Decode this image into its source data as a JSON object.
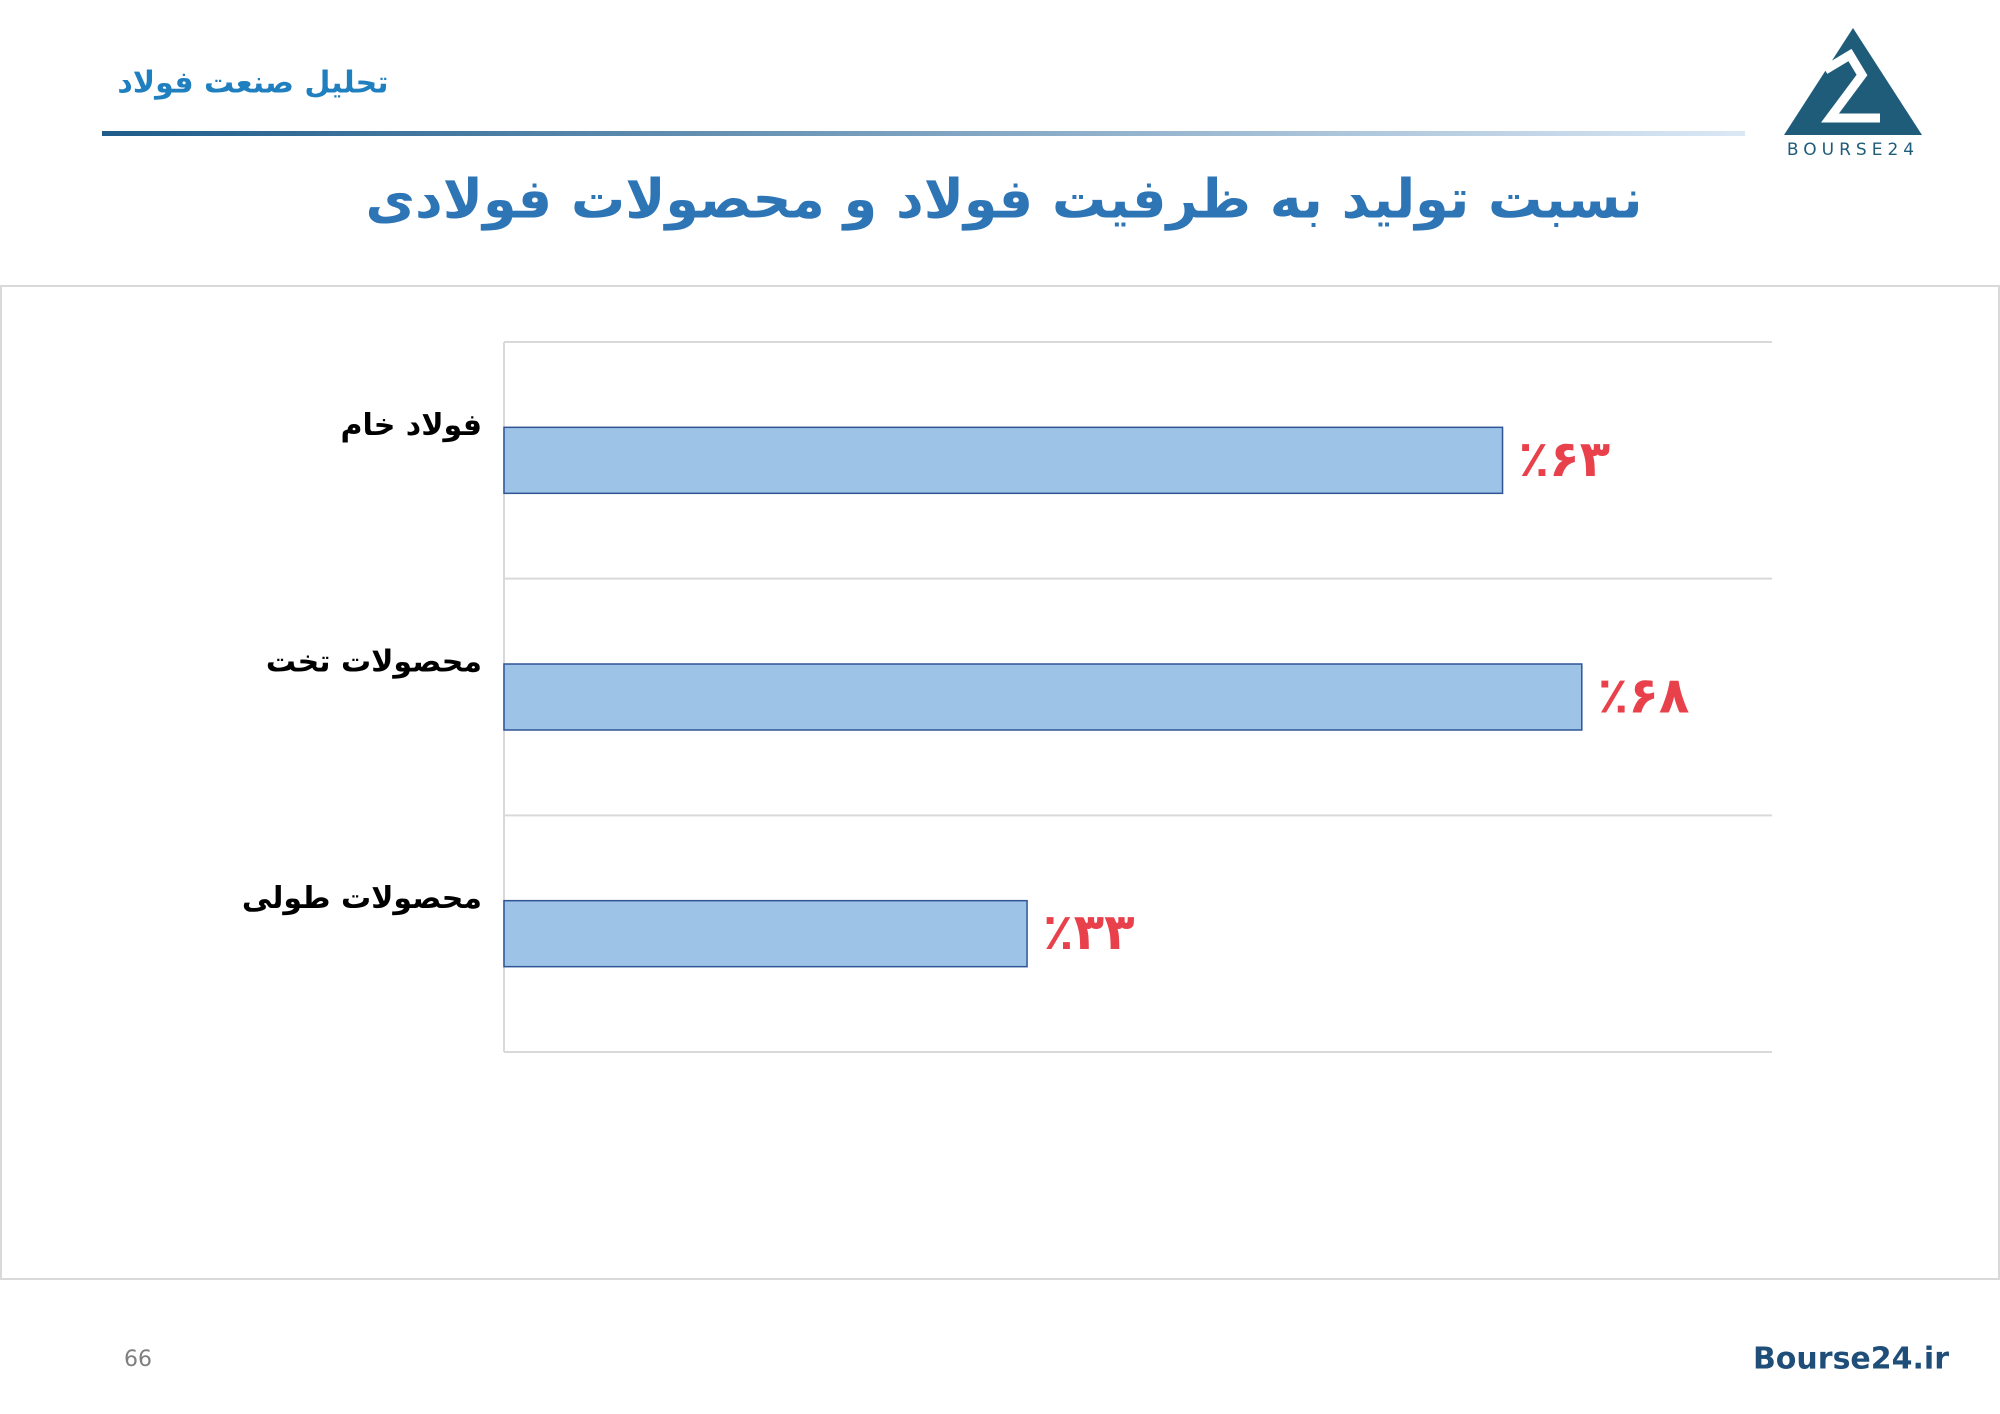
{
  "header": {
    "section": "تحلیل صنعت فولاد",
    "logo": "BOURSE24"
  },
  "chart_data": {
    "type": "bar",
    "orientation": "horizontal",
    "title": "نسبت تولید به ظرفیت فولاد و محصولات فولادی",
    "categories": [
      "فولاد خام",
      "محصولات تخت",
      "محصولات طولی"
    ],
    "values": [
      63,
      68,
      33
    ],
    "value_labels": [
      "٪۶۳",
      "٪۶۸",
      "٪۳۳"
    ],
    "color": "#9dc3e6",
    "label_color": "#e8414b",
    "xlim": [
      0,
      80
    ]
  },
  "footer": {
    "page": "66",
    "site": "Bourse24.ir"
  }
}
